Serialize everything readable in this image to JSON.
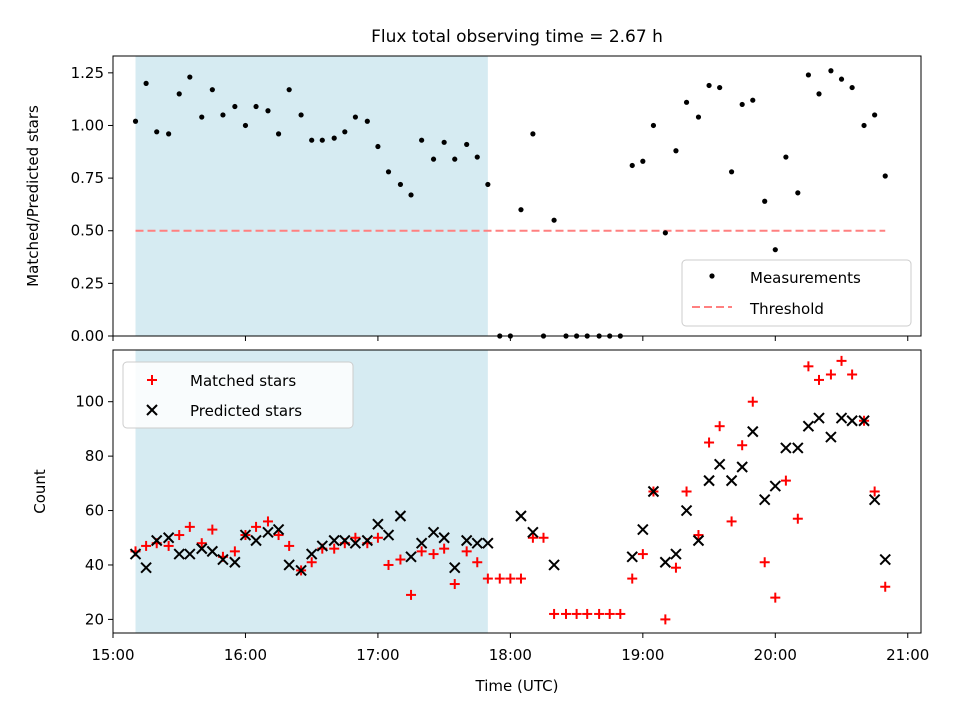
{
  "chart_data": [
    {
      "type": "scatter",
      "title": "Flux total observing time = 2.67 h",
      "xlabel": "",
      "ylabel": "Matched/Predicted stars",
      "xlim": [
        15.0,
        21.1
      ],
      "ylim": [
        0.0,
        1.33
      ],
      "yticks": [
        0.0,
        0.25,
        0.5,
        0.75,
        1.0,
        1.25
      ],
      "ytick_labels": [
        "0.00",
        "0.25",
        "0.50",
        "0.75",
        "1.00",
        "1.25"
      ],
      "shaded_span": [
        15.17,
        17.83
      ],
      "legend_position": "bottom-right",
      "legend": [
        "Measurements",
        "Threshold"
      ],
      "threshold": {
        "name": "Threshold",
        "x": [
          15.17,
          20.83
        ],
        "y": [
          0.5,
          0.5
        ],
        "color": "#ff8080"
      },
      "series": [
        {
          "name": "Measurements",
          "color": "#000000",
          "x": [
            15.17,
            15.25,
            15.33,
            15.42,
            15.5,
            15.58,
            15.67,
            15.75,
            15.83,
            15.92,
            16.0,
            16.08,
            16.17,
            16.25,
            16.33,
            16.42,
            16.5,
            16.58,
            16.67,
            16.75,
            16.83,
            16.92,
            17.0,
            17.08,
            17.17,
            17.25,
            17.33,
            17.42,
            17.5,
            17.58,
            17.67,
            17.75,
            17.83,
            17.92,
            18.0,
            18.08,
            18.17,
            18.25,
            18.33,
            18.42,
            18.5,
            18.58,
            18.67,
            18.75,
            18.83,
            18.92,
            19.0,
            19.08,
            19.17,
            19.25,
            19.33,
            19.42,
            19.5,
            19.58,
            19.67,
            19.75,
            19.83,
            19.92,
            20.0,
            20.08,
            20.17,
            20.25,
            20.33,
            20.42,
            20.5,
            20.58,
            20.67,
            20.75,
            20.83
          ],
          "y": [
            1.02,
            1.2,
            0.97,
            0.96,
            1.15,
            1.23,
            1.04,
            1.17,
            1.05,
            1.09,
            1.0,
            1.09,
            1.07,
            0.96,
            1.17,
            1.05,
            0.93,
            0.93,
            0.94,
            0.97,
            1.04,
            1.02,
            0.9,
            0.78,
            0.72,
            0.67,
            0.93,
            0.84,
            0.92,
            0.84,
            0.91,
            0.85,
            0.72,
            0.0,
            0.0,
            0.6,
            0.96,
            0.0,
            0.55,
            0.0,
            0.0,
            0.0,
            0.0,
            0.0,
            0.0,
            0.81,
            0.83,
            1.0,
            0.49,
            0.88,
            1.11,
            1.04,
            1.19,
            1.18,
            0.78,
            1.1,
            1.12,
            0.64,
            0.41,
            0.85,
            0.68,
            1.24,
            1.15,
            1.26,
            1.22,
            1.18,
            1.0,
            1.05,
            0.76
          ]
        }
      ]
    },
    {
      "type": "scatter",
      "title": "",
      "xlabel": "Time (UTC)",
      "ylabel": "Count",
      "xlim": [
        15.0,
        21.1
      ],
      "ylim": [
        15,
        119
      ],
      "yticks": [
        20,
        40,
        60,
        80,
        100
      ],
      "ytick_labels": [
        "20",
        "40",
        "60",
        "80",
        "100"
      ],
      "xticks": [
        15,
        16,
        17,
        18,
        19,
        20,
        21
      ],
      "xtick_labels": [
        "15:00",
        "16:00",
        "17:00",
        "18:00",
        "19:00",
        "20:00",
        "21:00"
      ],
      "shaded_span": [
        15.17,
        17.83
      ],
      "legend_position": "top-left",
      "legend": [
        "Matched stars",
        "Predicted stars"
      ],
      "series": [
        {
          "name": "Matched stars",
          "marker": "+",
          "color": "#ff0000",
          "x": [
            15.17,
            15.25,
            15.33,
            15.42,
            15.5,
            15.58,
            15.67,
            15.75,
            15.83,
            15.92,
            16.0,
            16.08,
            16.17,
            16.25,
            16.33,
            16.42,
            16.5,
            16.58,
            16.67,
            16.75,
            16.83,
            16.92,
            17.0,
            17.08,
            17.17,
            17.25,
            17.33,
            17.42,
            17.5,
            17.58,
            17.67,
            17.75,
            17.83,
            17.92,
            18.0,
            18.08,
            18.17,
            18.25,
            18.33,
            18.42,
            18.5,
            18.58,
            18.67,
            18.75,
            18.83,
            18.92,
            19.0,
            19.08,
            19.17,
            19.25,
            19.33,
            19.42,
            19.5,
            19.58,
            19.67,
            19.75,
            19.83,
            19.92,
            20.0,
            20.08,
            20.17,
            20.25,
            20.33,
            20.42,
            20.5,
            20.58,
            20.67,
            20.75,
            20.83
          ],
          "y": [
            45,
            47,
            48,
            47,
            51,
            54,
            48,
            53,
            43,
            45,
            51,
            54,
            56,
            51,
            47,
            38,
            41,
            46,
            46,
            48,
            50,
            48,
            50,
            40,
            42,
            29,
            45,
            44,
            46,
            33,
            45,
            41,
            35,
            35,
            35,
            35,
            50,
            50,
            22,
            22,
            22,
            22,
            22,
            22,
            22,
            35,
            44,
            67,
            20,
            39,
            67,
            51,
            85,
            91,
            56,
            84,
            100,
            41,
            28,
            71,
            57,
            113,
            108,
            110,
            115,
            110,
            93,
            67,
            32
          ]
        },
        {
          "name": "Predicted stars",
          "marker": "x",
          "color": "#000000",
          "x": [
            15.17,
            15.25,
            15.33,
            15.42,
            15.5,
            15.58,
            15.67,
            15.75,
            15.83,
            15.92,
            16.0,
            16.08,
            16.17,
            16.25,
            16.33,
            16.42,
            16.5,
            16.58,
            16.67,
            16.75,
            16.83,
            16.92,
            17.0,
            17.08,
            17.17,
            17.25,
            17.33,
            17.42,
            17.5,
            17.58,
            17.67,
            17.75,
            17.83,
            18.08,
            18.17,
            18.33,
            18.92,
            19.0,
            19.08,
            19.17,
            19.25,
            19.33,
            19.42,
            19.5,
            19.58,
            19.67,
            19.75,
            19.83,
            19.92,
            20.0,
            20.08,
            20.17,
            20.25,
            20.33,
            20.42,
            20.5,
            20.58,
            20.67,
            20.75,
            20.83
          ],
          "y": [
            44,
            39,
            49,
            50,
            44,
            44,
            46,
            45,
            42,
            41,
            51,
            49,
            52,
            53,
            40,
            38,
            44,
            47,
            49,
            49,
            48,
            49,
            55,
            51,
            58,
            43,
            48,
            52,
            50,
            39,
            49,
            48,
            48,
            58,
            52,
            40,
            43,
            53,
            67,
            41,
            44,
            60,
            49,
            71,
            77,
            71,
            76,
            89,
            64,
            69,
            83,
            83,
            91,
            94,
            87,
            94,
            93,
            93,
            64,
            42
          ]
        }
      ]
    }
  ]
}
